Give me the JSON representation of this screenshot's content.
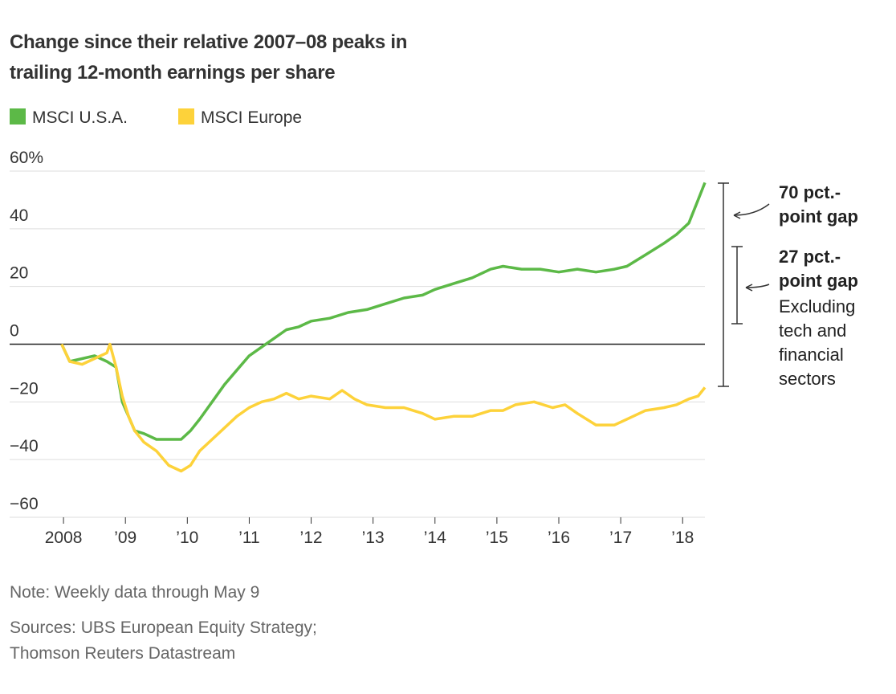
{
  "chart_data": {
    "type": "line",
    "title": "Change since their relative 2007–08 peaks in trailing 12-month earnings per share",
    "note": "Note: Weekly data through May 9",
    "source": "Sources: UBS European Equity Strategy; Thomson Reuters Datastream",
    "grid": true,
    "xlim": [
      2007.13,
      2018.36
    ],
    "ylim": [
      -60,
      60
    ],
    "xticks": [
      2008,
      {
        "value": 2009,
        "label": "’09"
      },
      {
        "value": 2010,
        "label": "’10"
      },
      {
        "value": 2011,
        "label": "’11"
      },
      {
        "value": 2012,
        "label": "’12"
      },
      {
        "value": 2013,
        "label": "’13"
      },
      {
        "value": 2014,
        "label": "’14"
      },
      {
        "value": 2015,
        "label": "’15"
      },
      {
        "value": 2016,
        "label": "’16"
      },
      {
        "value": 2017,
        "label": "’17"
      },
      {
        "value": 2018,
        "label": "’18"
      }
    ],
    "yticks": [
      {
        "value": -60,
        "label": "−60"
      },
      {
        "value": -40,
        "label": "−40"
      },
      {
        "value": -20,
        "label": "−20"
      },
      0,
      20,
      40,
      {
        "value": 60,
        "label": "60%"
      }
    ],
    "series": [
      {
        "name": "MSCI U.S.A.",
        "color": "#5cb947",
        "x": [
          2007.97,
          2008.1,
          2008.3,
          2008.5,
          2008.7,
          2008.85,
          2008.95,
          2009.05,
          2009.15,
          2009.3,
          2009.5,
          2009.7,
          2009.9,
          2010.05,
          2010.2,
          2010.4,
          2010.6,
          2010.8,
          2011.0,
          2011.2,
          2011.4,
          2011.6,
          2011.8,
          2012.0,
          2012.3,
          2012.6,
          2012.9,
          2013.2,
          2013.5,
          2013.8,
          2014.0,
          2014.3,
          2014.6,
          2014.9,
          2015.1,
          2015.4,
          2015.7,
          2016.0,
          2016.3,
          2016.6,
          2016.9,
          2017.1,
          2017.4,
          2017.7,
          2017.9,
          2018.1,
          2018.25,
          2018.36
        ],
        "values": [
          0,
          -6,
          -5,
          -4,
          -6,
          -8,
          -20,
          -25,
          -30,
          -31,
          -33,
          -33,
          -33,
          -30,
          -26,
          -20,
          -14,
          -9,
          -4,
          -1,
          2,
          5,
          6,
          8,
          9,
          11,
          12,
          14,
          16,
          17,
          19,
          21,
          23,
          26,
          27,
          26,
          26,
          25,
          26,
          25,
          26,
          27,
          31,
          35,
          38,
          42,
          50,
          56
        ]
      },
      {
        "name": "MSCI Europe",
        "color": "#fdd23a",
        "x": [
          2007.97,
          2008.1,
          2008.3,
          2008.5,
          2008.7,
          2008.75,
          2008.85,
          2008.95,
          2009.05,
          2009.15,
          2009.3,
          2009.5,
          2009.7,
          2009.9,
          2010.05,
          2010.2,
          2010.4,
          2010.6,
          2010.8,
          2011.0,
          2011.2,
          2011.4,
          2011.6,
          2011.8,
          2012.0,
          2012.3,
          2012.5,
          2012.7,
          2012.9,
          2013.2,
          2013.5,
          2013.8,
          2014.0,
          2014.3,
          2014.6,
          2014.9,
          2015.1,
          2015.3,
          2015.6,
          2015.9,
          2016.1,
          2016.3,
          2016.6,
          2016.9,
          2017.1,
          2017.4,
          2017.7,
          2017.9,
          2018.1,
          2018.25,
          2018.36
        ],
        "values": [
          0,
          -6,
          -7,
          -5,
          -3,
          0,
          -8,
          -18,
          -25,
          -30,
          -34,
          -37,
          -42,
          -44,
          -42,
          -37,
          -33,
          -29,
          -25,
          -22,
          -20,
          -19,
          -17,
          -19,
          -18,
          -19,
          -16,
          -19,
          -21,
          -22,
          -22,
          -24,
          -26,
          -25,
          -25,
          -23,
          -23,
          -21,
          -20,
          -22,
          -21,
          -24,
          -28,
          -28,
          -26,
          -23,
          -22,
          -21,
          -19,
          -18,
          -15
        ]
      }
    ],
    "annotations": [
      {
        "lines": [
          "70 pct.-",
          "point gap"
        ]
      },
      {
        "lines": [
          "27 pct.-",
          "point gap"
        ],
        "detail": [
          "Excluding",
          "tech and",
          "financial",
          "sectors"
        ]
      }
    ]
  }
}
